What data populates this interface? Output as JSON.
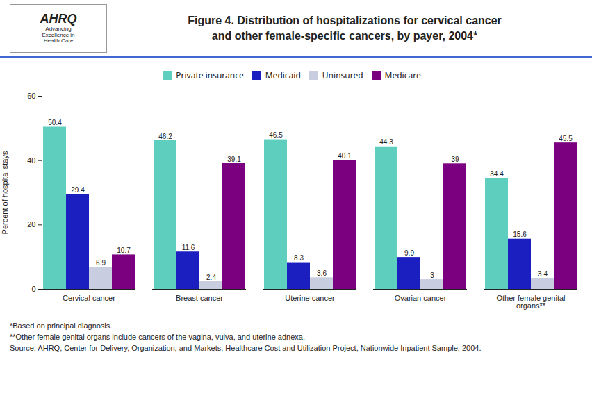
{
  "chart_data": {
    "type": "bar",
    "title": "Figure 4. Distribution of hospitalizations for cervical cancer\nand other female-specific cancers, by payer, 2004*",
    "annotations": [
      "AHRQ",
      "Advancing\nExcellence in\nHealth Care"
    ],
    "footnotes": [
      "*Based on principal diagnosis.",
      "**Other female genital organs include cancers of the vagina, vulva, and uterine adnexa.",
      "Source: AHRQ, Center for Delivery, Organization, and Markets, Healthcare Cost and Utilization Project, Nationwide Inpatient Sample, 2004."
    ],
    "categories": [
      "Cervical cancer",
      "Breast cancer",
      "Uterine cancer",
      "Ovarian cancer",
      "Other female genital\norgans**"
    ],
    "series": [
      {
        "name": "Private insurance",
        "color": "#5ECFBE",
        "values": [
          50.4,
          46.2,
          46.5,
          44.3,
          34.4
        ]
      },
      {
        "name": "Medicaid",
        "color": "#1B1FBF",
        "values": [
          29.4,
          11.6,
          8.3,
          9.9,
          15.6
        ]
      },
      {
        "name": "Uninsured",
        "color": "#C8CDE0",
        "values": [
          6.9,
          2.4,
          3.6,
          3.0,
          3.4
        ]
      },
      {
        "name": "Medicare",
        "color": "#7B0080",
        "values": [
          10.7,
          39.1,
          40.1,
          39.0,
          45.5
        ]
      }
    ],
    "ylabel": "Percent of hospital stays",
    "ylim": [
      0,
      60
    ],
    "yticks": [
      0,
      20,
      40,
      60
    ],
    "grid": false,
    "legend": "top",
    "data_labels": true
  }
}
